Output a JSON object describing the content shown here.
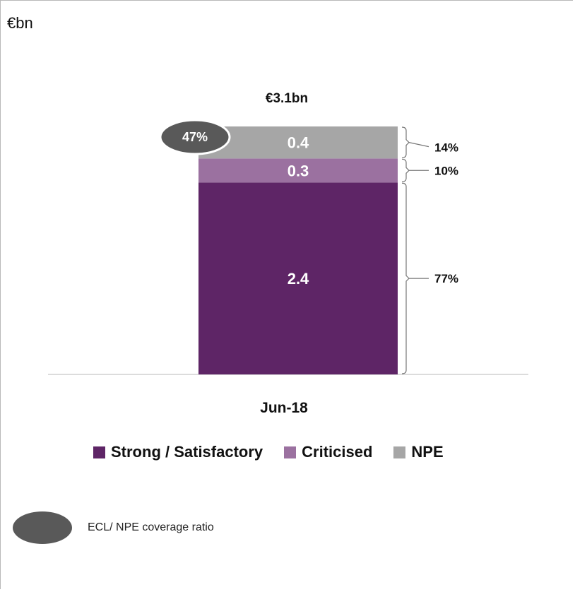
{
  "unit_label": "€bn",
  "chart_data": {
    "type": "bar",
    "stacked": true,
    "categories": [
      "Jun-18"
    ],
    "series": [
      {
        "name": "Strong / Satisfactory",
        "values": [
          2.4
        ],
        "value_label": "2.4",
        "share_label": "77%",
        "color": "#5e2566"
      },
      {
        "name": "Criticised",
        "values": [
          0.3
        ],
        "value_label": "0.3",
        "share_label": "10%",
        "color": "#9b71a0"
      },
      {
        "name": "NPE",
        "values": [
          0.4
        ],
        "value_label": "0.4",
        "share_label": "14%",
        "color": "#a6a6a6"
      }
    ],
    "total_label": "€3.1bn",
    "coverage_label": "47%",
    "ylim": [
      0,
      3.1
    ],
    "legend_position": "bottom"
  },
  "legend": {
    "items": [
      {
        "label": "Strong / Satisfactory",
        "color": "#5e2566"
      },
      {
        "label": "Criticised",
        "color": "#9b71a0"
      },
      {
        "label": "NPE",
        "color": "#a6a6a6"
      }
    ]
  },
  "note": {
    "label": "ECL/ NPE coverage ratio",
    "oval_color": "#595959"
  }
}
